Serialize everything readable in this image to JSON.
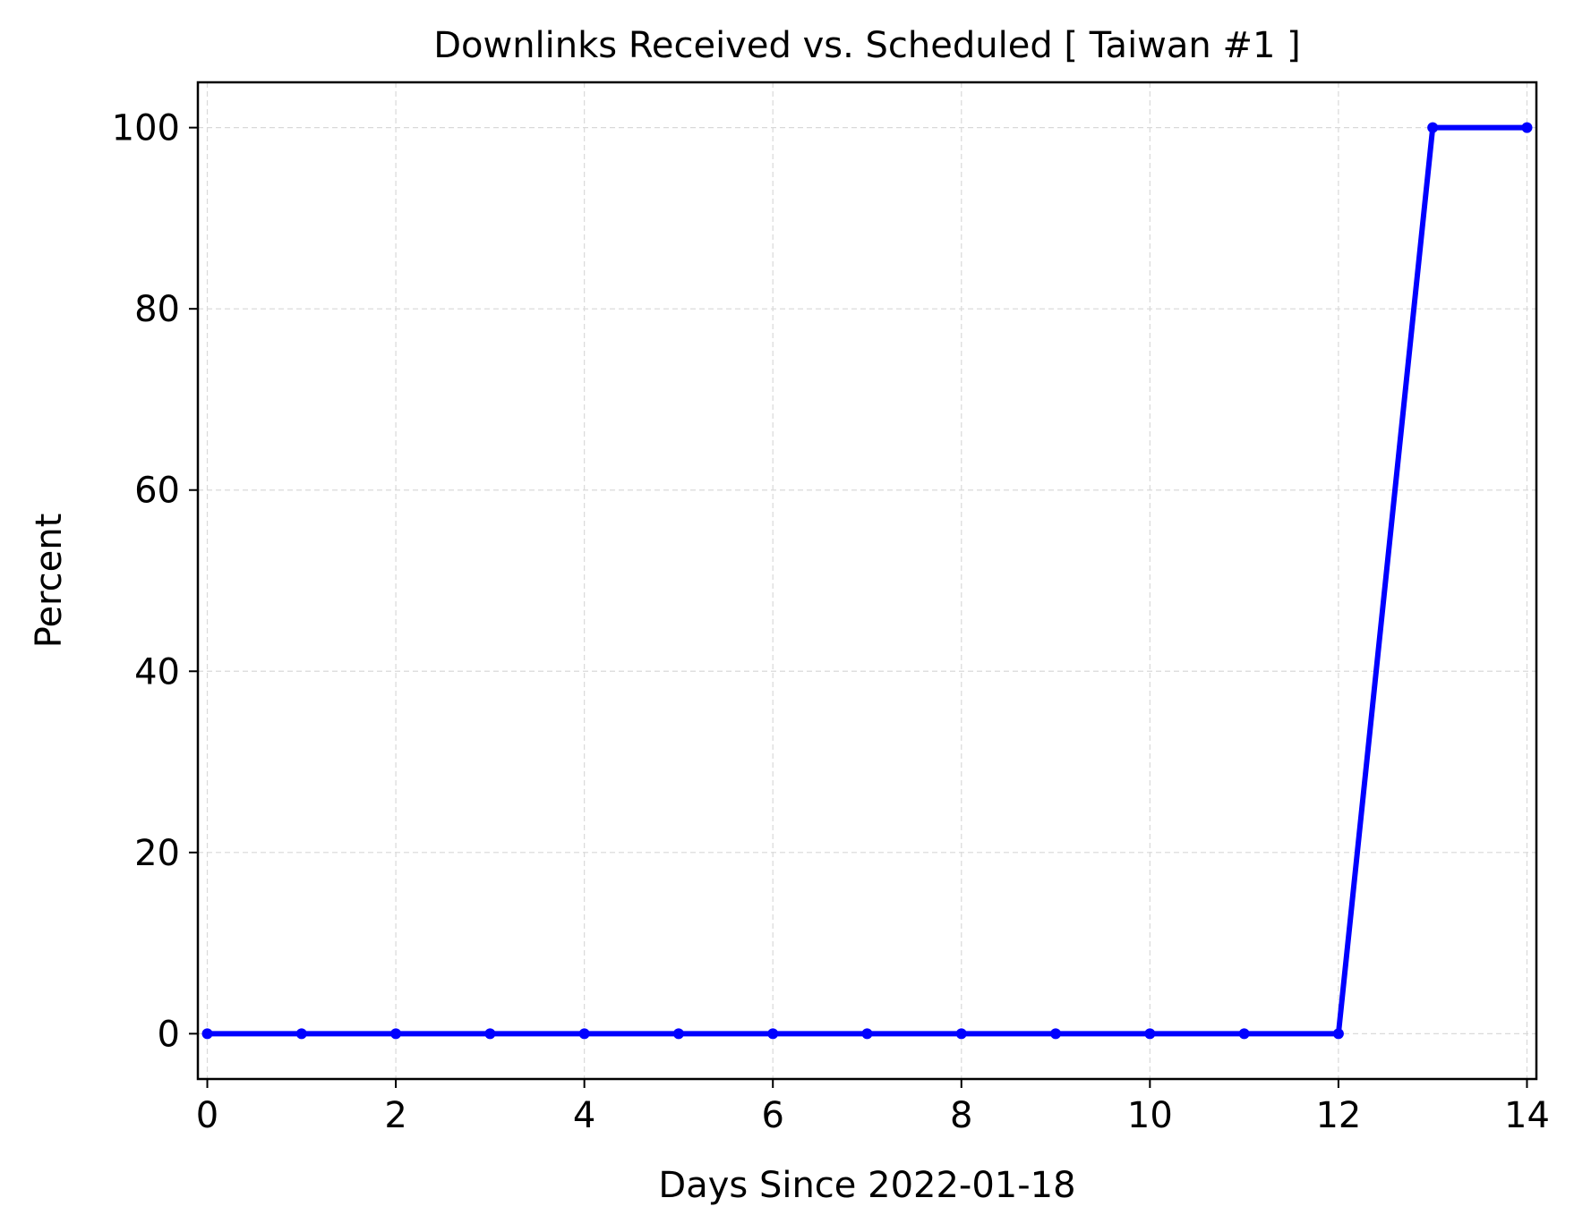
{
  "chart_data": {
    "type": "line",
    "title": "Downlinks Received vs. Scheduled [ Taiwan #1 ]",
    "xlabel": "Days Since 2022-01-18",
    "ylabel": "Percent",
    "xlim": [
      -0.1,
      14.1
    ],
    "ylim": [
      -5,
      105
    ],
    "x_ticks": [
      0,
      2,
      4,
      6,
      8,
      10,
      12,
      14
    ],
    "y_ticks": [
      0,
      20,
      40,
      60,
      80,
      100
    ],
    "grid": true,
    "legend": "none",
    "series": [
      {
        "color": "#0000ff",
        "x": [
          0,
          1,
          2,
          3,
          4,
          5,
          6,
          7,
          8,
          9,
          10,
          11,
          12,
          13,
          14
        ],
        "y": [
          0,
          0,
          0,
          0,
          0,
          0,
          0,
          0,
          0,
          0,
          0,
          0,
          0,
          100,
          100
        ]
      }
    ]
  }
}
